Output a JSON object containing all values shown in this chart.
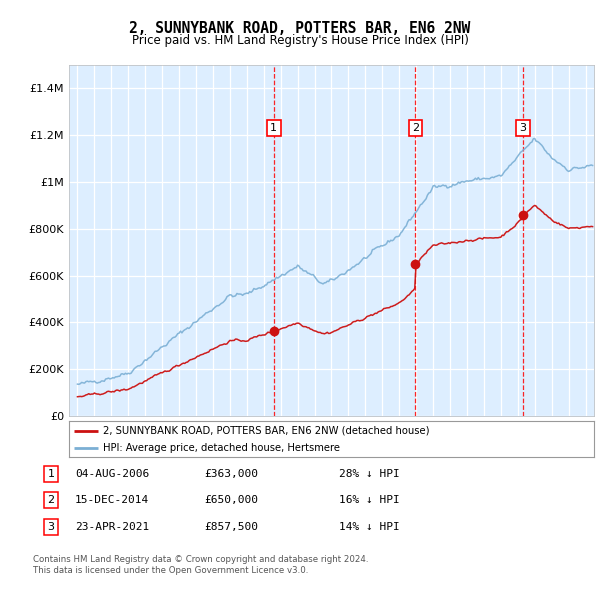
{
  "title": "2, SUNNYBANK ROAD, POTTERS BAR, EN6 2NW",
  "subtitle": "Price paid vs. HM Land Registry's House Price Index (HPI)",
  "legend_line1": "2, SUNNYBANK ROAD, POTTERS BAR, EN6 2NW (detached house)",
  "legend_line2": "HPI: Average price, detached house, Hertsmere",
  "sales": [
    {
      "label": "1",
      "date": "04-AUG-2006",
      "price": 363000,
      "pct": "28% ↓ HPI",
      "year": 2006.59
    },
    {
      "label": "2",
      "date": "15-DEC-2014",
      "price": 650000,
      "pct": "16% ↓ HPI",
      "year": 2014.96
    },
    {
      "label": "3",
      "date": "23-APR-2021",
      "price": 857500,
      "pct": "14% ↓ HPI",
      "year": 2021.31
    }
  ],
  "footer1": "Contains HM Land Registry data © Crown copyright and database right 2024.",
  "footer2": "This data is licensed under the Open Government Licence v3.0.",
  "hpi_color": "#7bafd4",
  "price_color": "#cc1111",
  "background_color": "#ddeeff",
  "ylim": [
    0,
    1500000
  ],
  "xlim": [
    1994.5,
    2025.5
  ]
}
